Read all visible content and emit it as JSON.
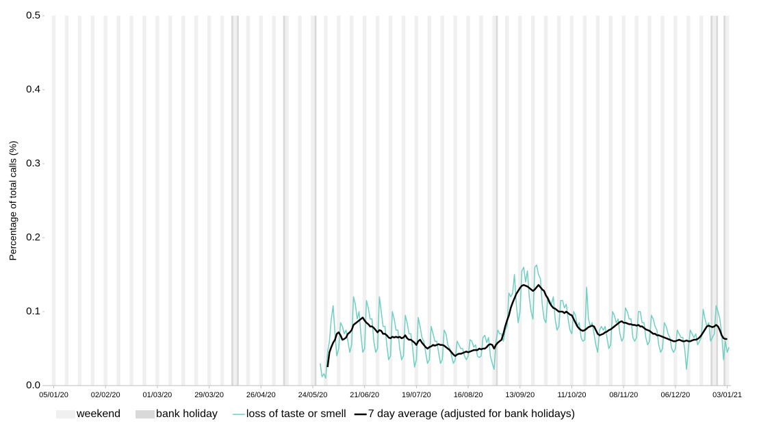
{
  "chart_data": {
    "type": "line",
    "y_label": "Percentage of total calls (%)",
    "ylim": [
      0,
      0.5
    ],
    "yticks": [
      {
        "value": 0,
        "label": "0.0"
      },
      0.1,
      0.2,
      0.3,
      0.4,
      0.5
    ],
    "xlim": [
      "31/12/19",
      "05/01/21"
    ],
    "xticks": [
      "05/01/20",
      "02/02/20",
      "01/03/20",
      "29/03/20",
      "26/04/20",
      "24/05/20",
      "21/06/20",
      "19/07/20",
      "16/08/20",
      "13/09/20",
      "11/10/20",
      "08/11/20",
      "06/12/20",
      "03/01/21"
    ],
    "weekend": {
      "name": "weekend",
      "color": "#f0f0f0",
      "dates": [
        "04/01/20",
        "11/01/20",
        "18/01/20",
        "25/01/20",
        "01/02/20",
        "08/02/20",
        "15/02/20",
        "22/02/20",
        "29/02/20",
        "07/03/20",
        "14/03/20",
        "21/03/20",
        "28/03/20",
        "04/04/20",
        "11/04/20",
        "18/04/20",
        "25/04/20",
        "02/05/20",
        "09/05/20",
        "16/05/20",
        "23/05/20",
        "30/05/20",
        "06/06/20",
        "13/06/20",
        "20/06/20",
        "27/06/20",
        "04/07/20",
        "11/07/20",
        "18/07/20",
        "25/07/20",
        "01/08/20",
        "08/08/20",
        "15/08/20",
        "22/08/20",
        "29/08/20",
        "05/09/20",
        "12/09/20",
        "19/09/20",
        "26/09/20",
        "03/10/20",
        "10/10/20",
        "17/10/20",
        "24/10/20",
        "31/10/20",
        "07/11/20",
        "14/11/20",
        "21/11/20",
        "28/11/20",
        "05/12/20",
        "12/12/20",
        "19/12/20",
        "26/12/20",
        "02/01/21"
      ]
    },
    "bank_holiday": {
      "name": "bank holiday",
      "color": "#d9d9d9",
      "dates": [
        "10/04/20",
        "13/04/20",
        "08/05/20",
        "25/05/20",
        "31/08/20",
        "25/12/20",
        "28/12/20",
        "01/01/21"
      ]
    },
    "x": [
      "28/05/20",
      "29/05/20",
      "30/05/20",
      "31/05/20",
      "01/06/20",
      "02/06/20",
      "03/06/20",
      "04/06/20",
      "05/06/20",
      "06/06/20",
      "07/06/20",
      "08/06/20",
      "09/06/20",
      "10/06/20",
      "11/06/20",
      "12/06/20",
      "13/06/20",
      "14/06/20",
      "15/06/20",
      "16/06/20",
      "17/06/20",
      "18/06/20",
      "19/06/20",
      "20/06/20",
      "21/06/20",
      "22/06/20",
      "23/06/20",
      "24/06/20",
      "25/06/20",
      "26/06/20",
      "27/06/20",
      "28/06/20",
      "29/06/20",
      "30/06/20",
      "01/07/20",
      "02/07/20",
      "03/07/20",
      "04/07/20",
      "05/07/20",
      "06/07/20",
      "07/07/20",
      "08/07/20",
      "09/07/20",
      "10/07/20",
      "11/07/20",
      "12/07/20",
      "13/07/20",
      "14/07/20",
      "15/07/20",
      "16/07/20",
      "17/07/20",
      "18/07/20",
      "19/07/20",
      "20/07/20",
      "21/07/20",
      "22/07/20",
      "23/07/20",
      "24/07/20",
      "25/07/20",
      "26/07/20",
      "27/07/20",
      "28/07/20",
      "29/07/20",
      "30/07/20",
      "31/07/20",
      "01/08/20",
      "02/08/20",
      "03/08/20",
      "04/08/20",
      "05/08/20",
      "06/08/20",
      "07/08/20",
      "08/08/20",
      "09/08/20",
      "10/08/20",
      "11/08/20",
      "12/08/20",
      "13/08/20",
      "14/08/20",
      "15/08/20",
      "16/08/20",
      "17/08/20",
      "18/08/20",
      "19/08/20",
      "20/08/20",
      "21/08/20",
      "22/08/20",
      "23/08/20",
      "24/08/20",
      "25/08/20",
      "26/08/20",
      "27/08/20",
      "28/08/20",
      "29/08/20",
      "30/08/20",
      "31/08/20",
      "01/09/20",
      "02/09/20",
      "03/09/20",
      "04/09/20",
      "05/09/20",
      "06/09/20",
      "07/09/20",
      "08/09/20",
      "09/09/20",
      "10/09/20",
      "11/09/20",
      "12/09/20",
      "13/09/20",
      "14/09/20",
      "15/09/20",
      "16/09/20",
      "17/09/20",
      "18/09/20",
      "19/09/20",
      "20/09/20",
      "21/09/20",
      "22/09/20",
      "23/09/20",
      "24/09/20",
      "25/09/20",
      "26/09/20",
      "27/09/20",
      "28/09/20",
      "29/09/20",
      "30/09/20",
      "01/10/20",
      "02/10/20",
      "03/10/20",
      "04/10/20",
      "05/10/20",
      "06/10/20",
      "07/10/20",
      "08/10/20",
      "09/10/20",
      "10/10/20",
      "11/10/20",
      "12/10/20",
      "13/10/20",
      "14/10/20",
      "15/10/20",
      "16/10/20",
      "17/10/20",
      "18/10/20",
      "19/10/20",
      "20/10/20",
      "21/10/20",
      "22/10/20",
      "23/10/20",
      "24/10/20",
      "25/10/20",
      "26/10/20",
      "27/10/20",
      "28/10/20",
      "29/10/20",
      "30/10/20",
      "31/10/20",
      "01/11/20",
      "02/11/20",
      "03/11/20",
      "04/11/20",
      "05/11/20",
      "06/11/20",
      "07/11/20",
      "08/11/20",
      "09/11/20",
      "10/11/20",
      "11/11/20",
      "12/11/20",
      "13/11/20",
      "14/11/20",
      "15/11/20",
      "16/11/20",
      "17/11/20",
      "18/11/20",
      "19/11/20",
      "20/11/20",
      "21/11/20",
      "22/11/20",
      "23/11/20",
      "24/11/20",
      "25/11/20",
      "26/11/20",
      "27/11/20",
      "28/11/20",
      "29/11/20",
      "30/11/20",
      "01/12/20",
      "02/12/20",
      "03/12/20",
      "04/12/20",
      "05/12/20",
      "06/12/20",
      "07/12/20",
      "08/12/20",
      "09/12/20",
      "10/12/20",
      "11/12/20",
      "12/12/20",
      "13/12/20",
      "14/12/20",
      "15/12/20",
      "16/12/20",
      "17/12/20",
      "18/12/20",
      "19/12/20",
      "20/12/20",
      "21/12/20",
      "22/12/20",
      "23/12/20",
      "24/12/20",
      "25/12/20",
      "26/12/20",
      "27/12/20",
      "28/12/20",
      "29/12/20",
      "30/12/20",
      "31/12/20",
      "01/01/21",
      "02/01/21",
      "03/01/21",
      "04/01/21"
    ],
    "series": [
      {
        "name": "loss of taste or smell",
        "color": "#6fcfc2",
        "width": 1.5,
        "values": [
          0.03,
          0.012,
          0.016,
          0.01,
          0.045,
          0.06,
          0.09,
          0.108,
          0.07,
          0.04,
          0.05,
          0.085,
          0.08,
          0.07,
          0.075,
          0.06,
          0.045,
          0.055,
          0.12,
          0.11,
          0.09,
          0.1,
          0.07,
          0.045,
          0.05,
          0.115,
          0.105,
          0.09,
          0.09,
          0.06,
          0.045,
          0.05,
          0.12,
          0.1,
          0.08,
          0.08,
          0.055,
          0.035,
          0.04,
          0.1,
          0.09,
          0.075,
          0.075,
          0.05,
          0.035,
          0.04,
          0.095,
          0.085,
          0.07,
          0.07,
          0.05,
          0.025,
          0.035,
          0.092,
          0.08,
          0.065,
          0.06,
          0.045,
          0.03,
          0.035,
          0.08,
          0.07,
          0.06,
          0.06,
          0.045,
          0.03,
          0.035,
          0.075,
          0.07,
          0.055,
          0.05,
          0.04,
          0.03,
          0.035,
          0.06,
          0.055,
          0.05,
          0.05,
          0.04,
          0.035,
          0.04,
          0.062,
          0.06,
          0.052,
          0.055,
          0.04,
          0.038,
          0.04,
          0.065,
          0.068,
          0.058,
          0.065,
          0.04,
          0.03,
          0.022,
          0.06,
          0.075,
          0.07,
          0.07,
          0.06,
          0.075,
          0.08,
          0.125,
          0.12,
          0.125,
          0.15,
          0.11,
          0.085,
          0.1,
          0.155,
          0.16,
          0.14,
          0.155,
          0.12,
          0.1,
          0.09,
          0.16,
          0.163,
          0.15,
          0.145,
          0.11,
          0.09,
          0.085,
          0.12,
          0.115,
          0.11,
          0.12,
          0.09,
          0.075,
          0.08,
          0.115,
          0.115,
          0.105,
          0.11,
          0.09,
          0.075,
          0.07,
          0.1,
          0.095,
          0.08,
          0.085,
          0.065,
          0.06,
          0.062,
          0.133,
          0.09,
          0.08,
          0.085,
          0.07,
          0.055,
          0.045,
          0.075,
          0.08,
          0.075,
          0.08,
          0.065,
          0.05,
          0.055,
          0.1,
          0.095,
          0.085,
          0.09,
          0.07,
          0.06,
          0.065,
          0.105,
          0.1,
          0.09,
          0.09,
          0.065,
          0.06,
          0.065,
          0.1,
          0.1,
          0.085,
          0.085,
          0.065,
          0.055,
          0.06,
          0.095,
          0.09,
          0.08,
          0.075,
          0.055,
          0.045,
          0.05,
          0.085,
          0.08,
          0.07,
          0.065,
          0.05,
          0.045,
          0.05,
          0.075,
          0.07,
          0.065,
          0.065,
          0.05,
          0.022,
          0.05,
          0.075,
          0.07,
          0.065,
          0.07,
          0.055,
          0.06,
          0.065,
          0.103,
          0.09,
          0.08,
          0.085,
          0.06,
          0.065,
          0.07,
          0.108,
          0.1,
          0.09,
          0.07,
          0.035,
          0.06,
          0.045,
          0.052
        ]
      },
      {
        "name": "7 day average (adjusted for bank holidays)",
        "color": "#000000",
        "width": 2.5,
        "values": [
          null,
          null,
          null,
          null,
          0.025,
          0.045,
          0.052,
          0.058,
          0.062,
          0.07,
          0.072,
          0.068,
          0.062,
          0.063,
          0.065,
          0.07,
          0.072,
          0.075,
          0.082,
          0.084,
          0.086,
          0.088,
          0.09,
          0.092,
          0.088,
          0.085,
          0.083,
          0.08,
          0.08,
          0.078,
          0.075,
          0.072,
          0.075,
          0.074,
          0.07,
          0.07,
          0.068,
          0.065,
          0.064,
          0.066,
          0.065,
          0.066,
          0.065,
          0.066,
          0.064,
          0.065,
          0.068,
          0.064,
          0.062,
          0.062,
          0.06,
          0.058,
          0.055,
          0.06,
          0.062,
          0.058,
          0.055,
          0.052,
          0.05,
          0.052,
          0.053,
          0.055,
          0.054,
          0.055,
          0.056,
          0.055,
          0.055,
          0.054,
          0.052,
          0.05,
          0.048,
          0.045,
          0.042,
          0.04,
          0.042,
          0.043,
          0.043,
          0.044,
          0.045,
          0.046,
          0.045,
          0.046,
          0.047,
          0.048,
          0.048,
          0.048,
          0.05,
          0.049,
          0.05,
          0.05,
          0.052,
          0.055,
          0.056,
          0.055,
          0.05,
          0.055,
          0.058,
          0.06,
          0.062,
          0.07,
          0.08,
          0.088,
          0.095,
          0.105,
          0.112,
          0.118,
          0.124,
          0.128,
          0.132,
          0.135,
          0.136,
          0.135,
          0.134,
          0.132,
          0.13,
          0.128,
          0.13,
          0.133,
          0.136,
          0.133,
          0.13,
          0.128,
          0.122,
          0.118,
          0.112,
          0.108,
          0.105,
          0.104,
          0.102,
          0.1,
          0.1,
          0.1,
          0.098,
          0.1,
          0.098,
          0.096,
          0.095,
          0.09,
          0.085,
          0.08,
          0.077,
          0.075,
          0.074,
          0.075,
          0.077,
          0.079,
          0.08,
          0.081,
          0.08,
          0.075,
          0.07,
          0.068,
          0.069,
          0.07,
          0.072,
          0.073,
          0.075,
          0.076,
          0.078,
          0.08,
          0.082,
          0.084,
          0.086,
          0.087,
          0.085,
          0.085,
          0.084,
          0.083,
          0.083,
          0.082,
          0.082,
          0.081,
          0.082,
          0.08,
          0.08,
          0.078,
          0.076,
          0.075,
          0.074,
          0.072,
          0.07,
          0.07,
          0.068,
          0.068,
          0.067,
          0.066,
          0.065,
          0.064,
          0.063,
          0.062,
          0.061,
          0.06,
          0.06,
          0.061,
          0.062,
          0.061,
          0.06,
          0.06,
          0.061,
          0.06,
          0.06,
          0.061,
          0.062,
          0.062,
          0.063,
          0.065,
          0.068,
          0.072,
          0.076,
          0.08,
          0.081,
          0.08,
          0.079,
          0.08,
          0.082,
          0.08,
          0.075,
          0.068,
          0.064,
          0.063,
          0.063,
          null
        ]
      }
    ]
  }
}
